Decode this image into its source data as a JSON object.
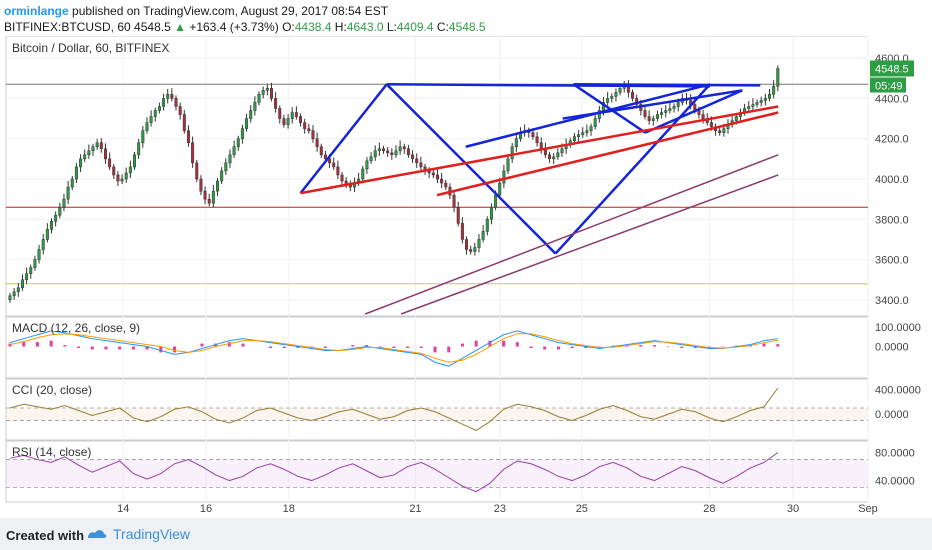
{
  "header": {
    "author": "orminlange",
    "published_text": "published on TradingView.com, August 29, 2017 08:54 EST",
    "symbol": "BITFINEX:BTCUSD, 60",
    "last": "4548.5",
    "change_arrow": "▲",
    "change": "+163.4 (+3.73%)",
    "ohlc": {
      "o_label": "O:",
      "o": "4438.4",
      "h_label": "H:",
      "h": "4643.0",
      "l_label": "L:",
      "l": "4409.4",
      "c_label": "C:",
      "c": "4548.5"
    }
  },
  "footer": {
    "created_with": "Created with",
    "brand": "TradingView"
  },
  "colors": {
    "up": "#2e9e45",
    "down": "#a8323c",
    "blue_lines": "#1424d8",
    "red_lines": "#e01f1f",
    "purple_lines": "#8b3a6b",
    "macd": "#2196f3",
    "signal": "#ff9800",
    "hist": "#e040a0",
    "cci": "#9c7a2e",
    "rsi": "#9a3ca8"
  },
  "chart_data": [
    {
      "type": "candlestick",
      "title": "Bitcoin / Dollar, 60, BITFINEX",
      "x_tick_labels": [
        "14",
        "16",
        "18",
        "21",
        "23",
        "25",
        "28",
        "30",
        "Sep"
      ],
      "y_tick_labels": [
        "4600.0",
        "4400.0",
        "4200.0",
        "4000.0",
        "3800.0",
        "3600.0",
        "3400.0"
      ],
      "ylim": [
        3330,
        4680
      ],
      "price_label": "4548.5",
      "countdown_label": "05:49",
      "horizontal_lines": [
        {
          "value": 4470,
          "color": "#777777"
        },
        {
          "value": 3860,
          "color": "#c02020"
        },
        {
          "value": 3480,
          "color": "#c8d040"
        }
      ],
      "series_close": [
        3420,
        3440,
        3460,
        3500,
        3530,
        3560,
        3600,
        3650,
        3700,
        3750,
        3790,
        3820,
        3860,
        3900,
        3960,
        4000,
        4060,
        4100,
        4120,
        4140,
        4160,
        4180,
        4150,
        4100,
        4060,
        4020,
        3990,
        4000,
        4030,
        4060,
        4120,
        4180,
        4240,
        4280,
        4310,
        4340,
        4360,
        4400,
        4420,
        4400,
        4360,
        4320,
        4240,
        4180,
        4080,
        4000,
        3940,
        3900,
        3880,
        3940,
        3990,
        4040,
        4080,
        4120,
        4160,
        4200,
        4250,
        4300,
        4340,
        4380,
        4420,
        4440,
        4450,
        4400,
        4350,
        4300,
        4270,
        4300,
        4330,
        4310,
        4280,
        4250,
        4240,
        4200,
        4160,
        4120,
        4100,
        4080,
        4060,
        4020,
        3990,
        3970,
        3960,
        3980,
        4000,
        4050,
        4090,
        4110,
        4140,
        4150,
        4140,
        4130,
        4120,
        4140,
        4160,
        4150,
        4120,
        4100,
        4080,
        4060,
        4040,
        4030,
        4020,
        4000,
        3980,
        3960,
        3920,
        3860,
        3780,
        3700,
        3650,
        3640,
        3660,
        3700,
        3740,
        3800,
        3860,
        3920,
        3980,
        4040,
        4100,
        4160,
        4200,
        4230,
        4240,
        4230,
        4210,
        4180,
        4150,
        4120,
        4100,
        4110,
        4130,
        4150,
        4170,
        4190,
        4210,
        4220,
        4230,
        4240,
        4260,
        4300,
        4340,
        4380,
        4400,
        4410,
        4430,
        4450,
        4460,
        4430,
        4400,
        4370,
        4340,
        4310,
        4290,
        4300,
        4320,
        4330,
        4340,
        4350,
        4360,
        4380,
        4400,
        4390,
        4370,
        4340,
        4320,
        4300,
        4280,
        4260,
        4240,
        4230,
        4250,
        4270,
        4290,
        4310,
        4330,
        4350,
        4360,
        4370,
        4380,
        4390,
        4400,
        4420,
        4460,
        4548.5
      ],
      "pattern_lines": [
        {
          "color": "blue",
          "points": [
            [
              82,
              3930
            ],
            [
              106,
              4470
            ]
          ]
        },
        {
          "color": "blue",
          "points": [
            [
              106,
              4470
            ],
            [
              196,
              4460
            ]
          ]
        },
        {
          "color": "blue",
          "points": [
            [
              106,
              4470
            ],
            [
              153,
              3630
            ]
          ]
        },
        {
          "color": "blue",
          "points": [
            [
              153,
              3630
            ],
            [
              196,
              4470
            ]
          ]
        },
        {
          "color": "blue",
          "points": [
            [
              128,
              4160
            ],
            [
              196,
              4470
            ]
          ]
        },
        {
          "color": "blue",
          "points": [
            [
              158,
              4470
            ],
            [
              210,
              4465
            ]
          ]
        },
        {
          "color": "blue",
          "points": [
            [
              158,
              4470
            ],
            [
              178,
              4230
            ]
          ]
        },
        {
          "color": "blue",
          "points": [
            [
              178,
              4230
            ],
            [
              205,
              4440
            ]
          ]
        },
        {
          "color": "blue",
          "points": [
            [
              155,
              4300
            ],
            [
              205,
              4440
            ]
          ]
        },
        {
          "color": "red",
          "points": [
            [
              82,
              3930
            ],
            [
              215,
              4360
            ]
          ]
        },
        {
          "color": "red",
          "points": [
            [
              120,
              3920
            ],
            [
              215,
              4330
            ]
          ]
        },
        {
          "color": "purple",
          "points": [
            [
              100,
              3330
            ],
            [
              215,
              4120
            ]
          ]
        },
        {
          "color": "purple",
          "points": [
            [
              110,
              3330
            ],
            [
              215,
              4020
            ]
          ]
        }
      ]
    },
    {
      "type": "line",
      "title": "MACD (12, 26, close, 9)",
      "y_tick_labels": [
        "100.0000",
        "0.0000"
      ],
      "series": [
        {
          "name": "MACD",
          "values": [
            20,
            40,
            60,
            80,
            70,
            55,
            40,
            30,
            20,
            10,
            0,
            -20,
            -40,
            -30,
            -10,
            10,
            30,
            40,
            30,
            20,
            10,
            0,
            -10,
            -20,
            -20,
            -10,
            0,
            -10,
            -20,
            -30,
            -40,
            -80,
            -100,
            -60,
            -20,
            20,
            60,
            80,
            60,
            40,
            20,
            10,
            0,
            -10,
            0,
            10,
            20,
            30,
            20,
            10,
            0,
            -10,
            -10,
            0,
            10,
            30,
            40
          ]
        },
        {
          "name": "Signal",
          "values": [
            10,
            25,
            45,
            60,
            65,
            60,
            50,
            40,
            30,
            20,
            10,
            0,
            -20,
            -30,
            -20,
            0,
            15,
            30,
            30,
            25,
            15,
            5,
            -5,
            -15,
            -20,
            -15,
            -5,
            -5,
            -15,
            -25,
            -35,
            -60,
            -80,
            -70,
            -40,
            0,
            40,
            65,
            65,
            50,
            30,
            15,
            5,
            -5,
            -3,
            5,
            15,
            25,
            22,
            15,
            5,
            -5,
            -8,
            -3,
            5,
            20,
            32
          ]
        }
      ]
    },
    {
      "type": "line",
      "title": "CCI (20, close)",
      "y_tick_labels": [
        "400.0000",
        "0.0000"
      ],
      "series": [
        {
          "name": "CCI",
          "values": [
            100,
            160,
            120,
            80,
            140,
            60,
            -20,
            40,
            100,
            -60,
            -120,
            -40,
            80,
            120,
            40,
            -80,
            -140,
            -60,
            60,
            100,
            20,
            -60,
            -100,
            -40,
            40,
            80,
            0,
            -80,
            -40,
            60,
            100,
            40,
            -60,
            -160,
            -260,
            -120,
            80,
            160,
            120,
            60,
            -40,
            -100,
            -20,
            80,
            140,
            60,
            -40,
            -80,
            0,
            80,
            40,
            -60,
            -120,
            -40,
            60,
            120,
            420
          ]
        }
      ]
    },
    {
      "type": "line",
      "title": "RSI (14, close)",
      "y_tick_labels": [
        "80.0000",
        "40.0000"
      ],
      "series": [
        {
          "name": "RSI",
          "values": [
            72,
            76,
            70,
            66,
            74,
            62,
            52,
            60,
            68,
            50,
            42,
            50,
            64,
            70,
            60,
            48,
            40,
            46,
            58,
            64,
            56,
            46,
            40,
            48,
            58,
            64,
            54,
            44,
            48,
            60,
            66,
            56,
            44,
            32,
            24,
            36,
            56,
            68,
            64,
            56,
            46,
            40,
            48,
            60,
            66,
            58,
            46,
            40,
            50,
            60,
            54,
            44,
            36,
            46,
            58,
            66,
            80
          ]
        }
      ]
    }
  ]
}
